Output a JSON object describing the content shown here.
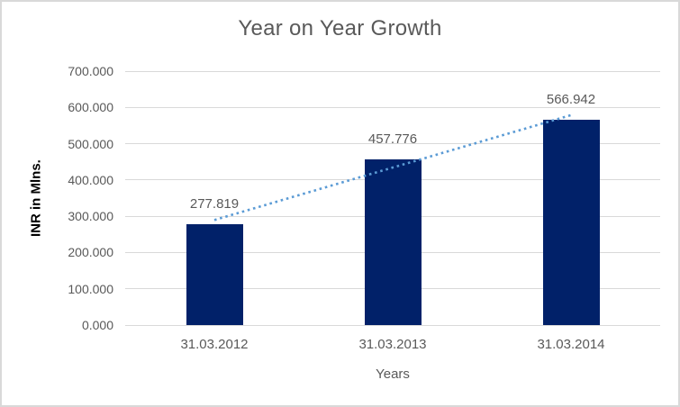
{
  "chart_data": {
    "type": "bar",
    "title": "Year on Year Growth",
    "xlabel": "Years",
    "ylabel": "INR in Mlns.",
    "categories": [
      "31.03.2012",
      "31.03.2013",
      "31.03.2014"
    ],
    "series": [
      {
        "name": "INR in Mlns.",
        "values": [
          277.819,
          457.776,
          566.942
        ]
      }
    ],
    "data_labels": [
      "277.819",
      "457.776",
      "566.942"
    ],
    "ylim": [
      0,
      700
    ],
    "ytick_labels": [
      "0.000",
      "100.000",
      "200.000",
      "300.000",
      "400.000",
      "500.000",
      "600.000",
      "700.000"
    ],
    "grid": true,
    "legend": "none",
    "trendline": {
      "kind": "linear",
      "style": "dotted",
      "color": "#5B9BD5"
    },
    "colors": {
      "bar": "#012169",
      "gridline": "#D9D9D9",
      "frame_border": "#D9D9D9",
      "background": "#FFFFFF",
      "title_text": "#595959",
      "tick_text": "#595959",
      "data_label_text": "#595959",
      "y_axis_title_text": "#000000"
    }
  }
}
